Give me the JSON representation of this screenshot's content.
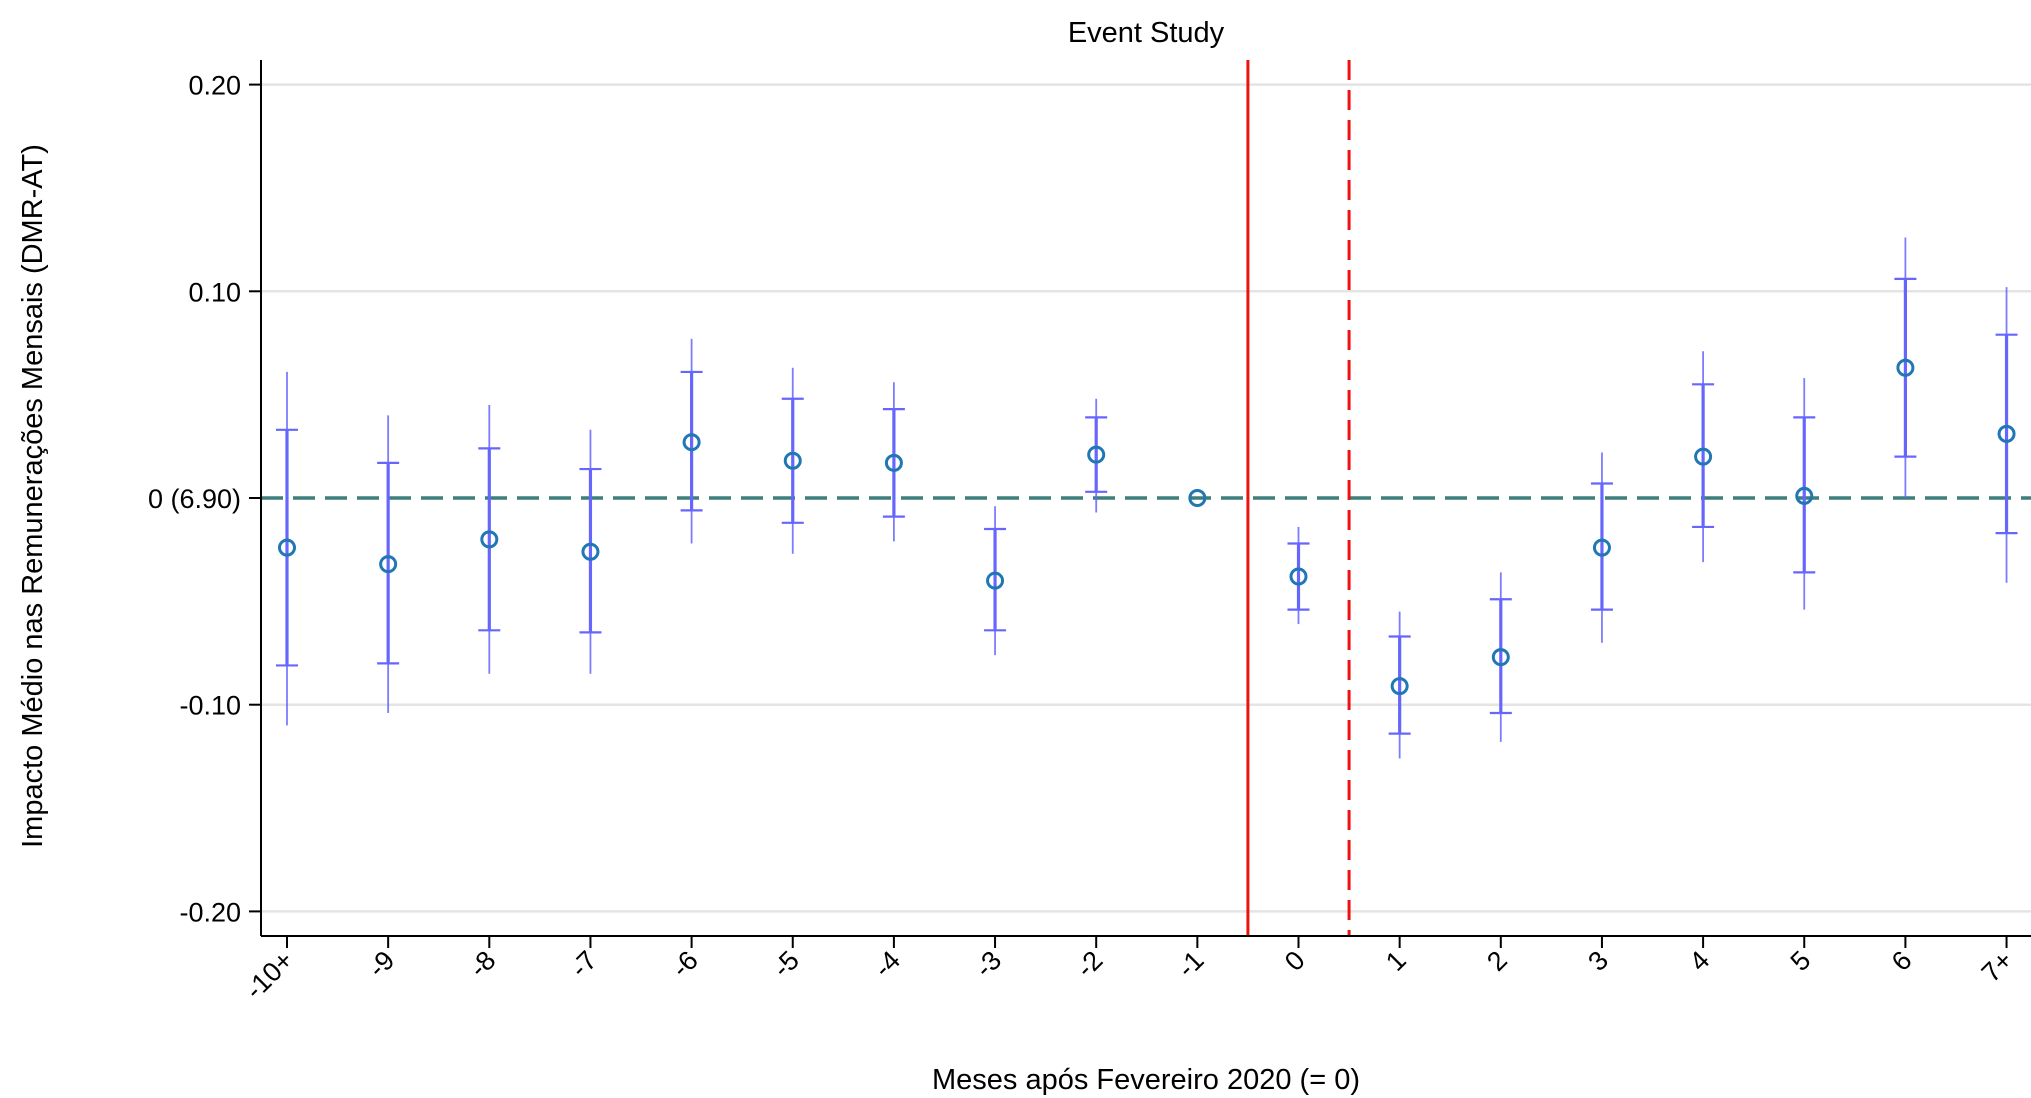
{
  "chart_data": {
    "type": "scatter",
    "title": "Event Study",
    "xlabel": "Meses após Fevereiro 2020 (= 0)",
    "ylabel": "Impacto Médio nas Remunerações Mensais (DMR-AT)",
    "categories": [
      "-10+",
      "-9",
      "-8",
      "-7",
      "-6",
      "-5",
      "-4",
      "-3",
      "-2",
      "-1",
      "0",
      "1",
      "2",
      "3",
      "4",
      "5",
      "6",
      "7+"
    ],
    "yticks": [
      {
        "value": 0.2,
        "label": "0.20"
      },
      {
        "value": 0.1,
        "label": "0.10"
      },
      {
        "value": 0.0,
        "label": "0 (6.90)"
      },
      {
        "value": -0.1,
        "label": "-0.10"
      },
      {
        "value": -0.2,
        "label": "-0.20"
      }
    ],
    "ylim": [
      -0.212,
      0.212
    ],
    "grid": true,
    "estimates": [
      -0.024,
      -0.032,
      -0.02,
      -0.026,
      0.027,
      0.018,
      0.017,
      -0.04,
      0.021,
      0.0,
      -0.038,
      -0.091,
      -0.077,
      -0.024,
      0.02,
      0.001,
      0.063,
      0.031
    ],
    "ci95_lower": [
      -0.11,
      -0.104,
      -0.085,
      -0.085,
      -0.022,
      -0.027,
      -0.021,
      -0.076,
      -0.007,
      null,
      -0.061,
      -0.126,
      -0.118,
      -0.07,
      -0.031,
      -0.054,
      0.0,
      -0.041
    ],
    "ci95_upper": [
      0.061,
      0.04,
      0.045,
      0.033,
      0.077,
      0.063,
      0.056,
      -0.004,
      0.048,
      null,
      -0.014,
      -0.055,
      -0.036,
      0.022,
      0.071,
      0.058,
      0.126,
      0.102
    ],
    "ci90_lower": [
      -0.081,
      -0.08,
      -0.064,
      -0.065,
      -0.006,
      -0.012,
      -0.009,
      -0.064,
      0.003,
      null,
      -0.054,
      -0.114,
      -0.104,
      -0.054,
      -0.014,
      -0.036,
      0.02,
      -0.017
    ],
    "ci90_upper": [
      0.033,
      0.017,
      0.024,
      0.014,
      0.061,
      0.048,
      0.043,
      -0.015,
      0.039,
      null,
      -0.022,
      -0.067,
      -0.049,
      0.007,
      0.055,
      0.039,
      0.106,
      0.079
    ],
    "reference_line": {
      "y": 0.0,
      "style": "dashed",
      "color": "#3f7f7a"
    },
    "event_lines": [
      {
        "x_position": -0.5,
        "style": "solid",
        "color": "#ee1111"
      },
      {
        "x_position": 0.5,
        "style": "dashed",
        "color": "#ee1111"
      }
    ],
    "colors": {
      "marker": "#1f77b4",
      "ci": "#6666ff",
      "grid": "#e4e4e4",
      "axis": "#000000"
    }
  }
}
